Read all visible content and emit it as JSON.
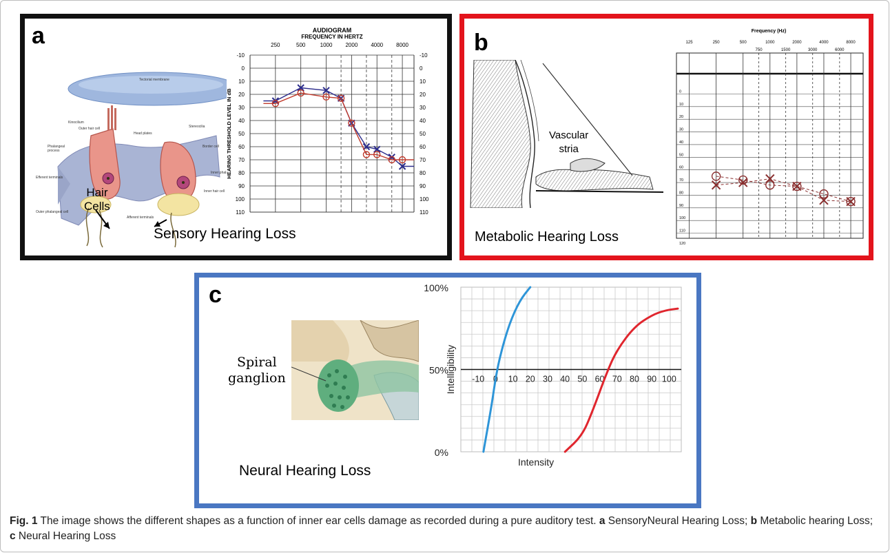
{
  "figure": {
    "caption": {
      "fig_label": "Fig. 1",
      "text_1": " The image shows the different shapes as a function of inner ear cells damage as recorded during a pure auditory test. ",
      "a_label": "a",
      "a_text": " SensoryNeural Hearing Loss; ",
      "b_label": "b",
      "b_text": " Metabolic hearing Loss; ",
      "c_label": "c",
      "c_text": " Neural Hearing Loss"
    },
    "colors": {
      "panel_a_border": "#111111",
      "panel_b_border": "#e3141c",
      "panel_c_border": "#4a77c2",
      "air_x": "#2d2d8c",
      "bone_o": "#c0392b",
      "curve_blue": "#2e95d8",
      "curve_red": "#e0262e"
    }
  },
  "panel_a": {
    "label": "a",
    "caption": "Sensory Hearing Loss",
    "illustration": {
      "labels": [
        "Tectorial membrane",
        "Kinocilium",
        "Outer hair cell",
        "Head plates",
        "Stereocilia",
        "Border cell",
        "Phalangeal process",
        "Inner phalangeal cell",
        "Efferent terminals",
        "Outer phalangeal cell",
        "Afferent terminals",
        "Inner hair cell"
      ],
      "hair_cells_label_1": "Hair",
      "hair_cells_label_2": "Cells"
    }
  },
  "panel_b": {
    "label": "b",
    "caption": "Metabolic Hearing Loss",
    "illustration": {
      "label_1": "Vascular",
      "label_2": "stria"
    }
  },
  "panel_c": {
    "label": "c",
    "caption": "Neural Hearing Loss",
    "illustration": {
      "label_1": "Spiral",
      "label_2": "ganglion"
    }
  },
  "chart_data": [
    {
      "id": "audiogram-a",
      "type": "line",
      "title": "AUDIOGRAM",
      "subtitle": "FREQUENCY IN HERTZ",
      "ylabel": "HEARING THRESHOLD LEVEL IN dB",
      "x_ticks": [
        "250",
        "500",
        "1000",
        "2000",
        "4000",
        "8000"
      ],
      "y_ticks": [
        "-10",
        "0",
        "10",
        "20",
        "30",
        "40",
        "50",
        "60",
        "70",
        "80",
        "90",
        "100",
        "110"
      ],
      "ylim": [
        -10,
        110
      ],
      "y_inverted": true,
      "xlim_log2_octaves": [
        125,
        11000
      ],
      "series": [
        {
          "marker": "x",
          "color": "#2d2d8c",
          "points": [
            [
              250,
              25
            ],
            [
              500,
              15
            ],
            [
              1000,
              17
            ],
            [
              1500,
              23
            ],
            [
              2000,
              42
            ],
            [
              3000,
              60
            ],
            [
              4000,
              62
            ],
            [
              6000,
              68
            ],
            [
              8000,
              75
            ]
          ],
          "extend": [
            [
              180,
              25
            ],
            [
              11000,
              75
            ]
          ]
        },
        {
          "marker": "o",
          "color": "#c0392b",
          "points": [
            [
              250,
              27
            ],
            [
              500,
              19
            ],
            [
              1000,
              22
            ],
            [
              1500,
              23
            ],
            [
              2000,
              42
            ],
            [
              3000,
              66
            ],
            [
              4000,
              66
            ],
            [
              6000,
              70
            ],
            [
              8000,
              70
            ]
          ],
          "extend": [
            [
              180,
              27
            ],
            [
              11000,
              70
            ]
          ]
        }
      ]
    },
    {
      "id": "audiogram-b",
      "type": "line",
      "title": "Frequency (Hz)",
      "x_ticks_top": [
        "125",
        "250",
        "500",
        "1000",
        "2000",
        "4000",
        "8000"
      ],
      "x_ticks_bottom": [
        "750",
        "1500",
        "3000",
        "6000"
      ],
      "y_ticks": [
        "0",
        "10",
        "20",
        "30",
        "40",
        "50",
        "60",
        "70",
        "80",
        "90",
        "100",
        "110",
        "120"
      ],
      "ylim": [
        -10,
        120
      ],
      "y_inverted": true,
      "series": [
        {
          "marker": "x",
          "color": "#8a2f2f",
          "points": [
            [
              250,
              72
            ],
            [
              500,
              70
            ],
            [
              1000,
              67
            ],
            [
              2000,
              73
            ],
            [
              4000,
              84
            ],
            [
              8000,
              85
            ]
          ]
        },
        {
          "marker": "o",
          "color": "#8a2f2f",
          "points": [
            [
              250,
              65
            ],
            [
              500,
              68
            ],
            [
              1000,
              72
            ],
            [
              2000,
              73
            ],
            [
              4000,
              79
            ],
            [
              8000,
              85
            ]
          ]
        }
      ]
    },
    {
      "id": "intelligibility-c",
      "type": "line",
      "xlabel": "Intensity",
      "ylabel": "Intelligibility",
      "x_ticks": [
        "-10",
        "0",
        "10",
        "20",
        "30",
        "40",
        "50",
        "60",
        "70",
        "80",
        "90",
        "100"
      ],
      "y_ticks": [
        "0%",
        "50%",
        "100%"
      ],
      "xlim": [
        -20,
        107
      ],
      "ylim": [
        0,
        100
      ],
      "series": [
        {
          "color": "#2e95d8",
          "points": [
            [
              -7,
              0
            ],
            [
              -2,
              30
            ],
            [
              0,
              45
            ],
            [
              3,
              60
            ],
            [
              8,
              78
            ],
            [
              14,
              92
            ],
            [
              20,
              100
            ]
          ]
        },
        {
          "color": "#e0262e",
          "points": [
            [
              40,
              0
            ],
            [
              50,
              10
            ],
            [
              56,
              25
            ],
            [
              64,
              48
            ],
            [
              70,
              62
            ],
            [
              80,
              76
            ],
            [
              90,
              83
            ],
            [
              98,
              86
            ],
            [
              105,
              87
            ]
          ]
        }
      ]
    }
  ]
}
